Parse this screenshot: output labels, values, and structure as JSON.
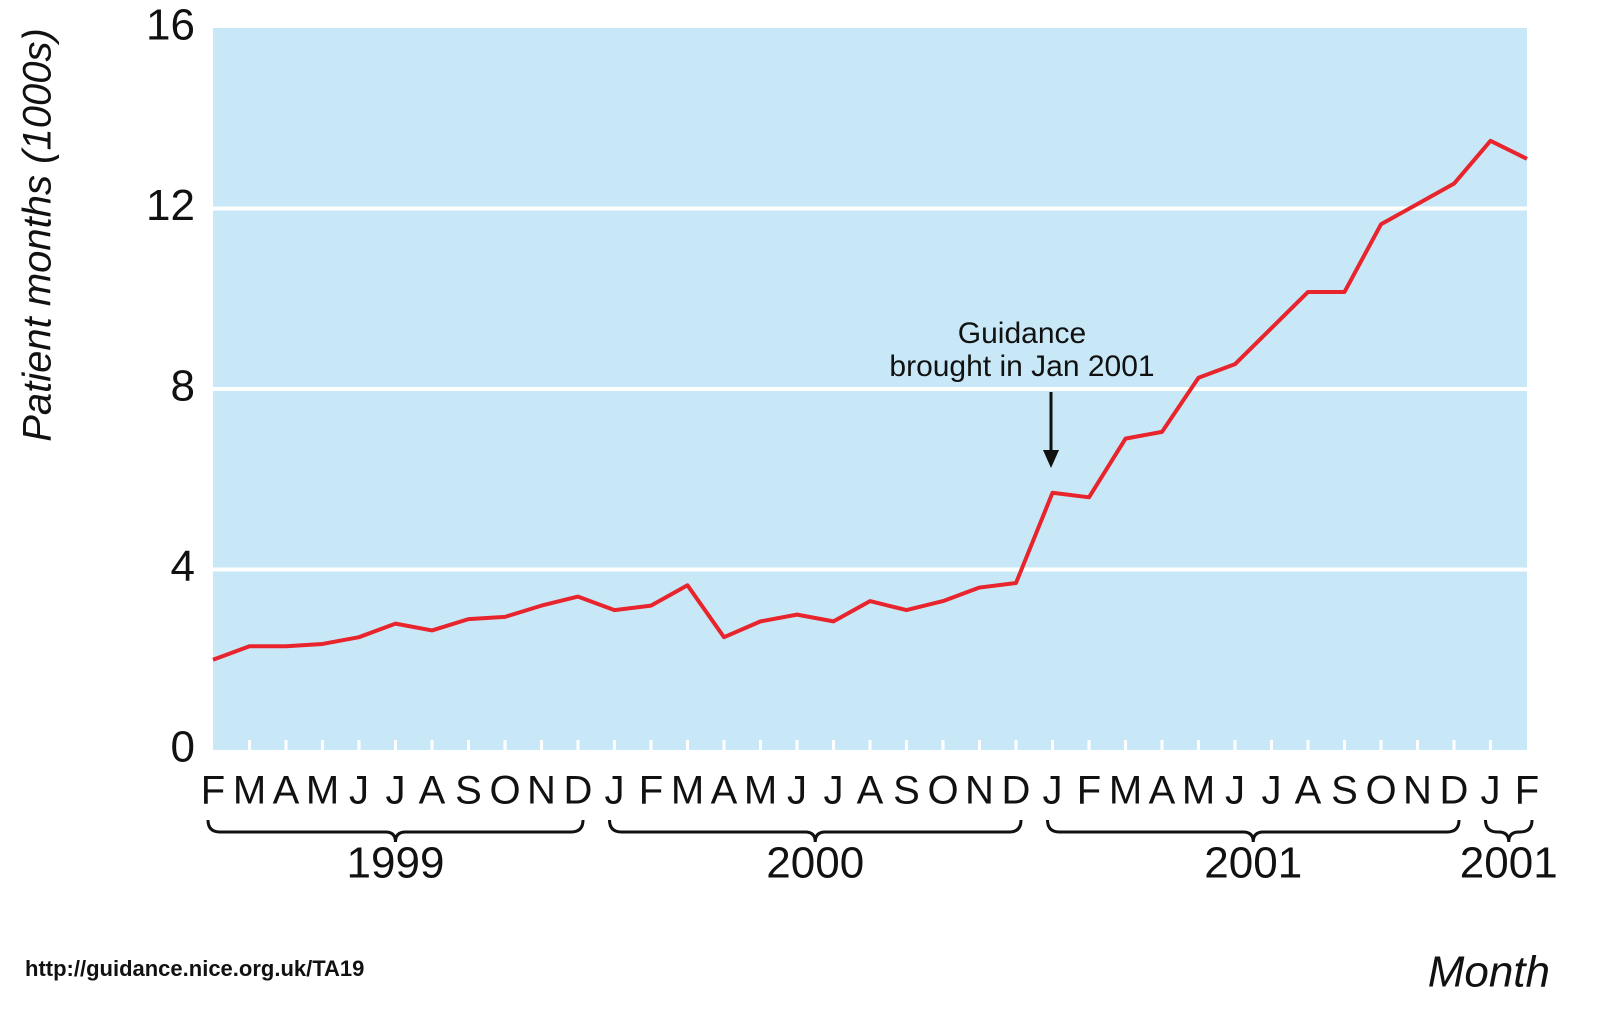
{
  "chart_data": {
    "type": "line",
    "y_label": "Patient months (1000s)",
    "x_label": "Month",
    "annotation": [
      "Guidance",
      "brought in Jan 2001"
    ],
    "source": "http://guidance.nice.org.uk/TA19",
    "categories": [
      "F",
      "M",
      "A",
      "M",
      "J",
      "J",
      "A",
      "S",
      "O",
      "N",
      "D",
      "J",
      "F",
      "M",
      "A",
      "M",
      "J",
      "J",
      "A",
      "S",
      "O",
      "N",
      "D",
      "J",
      "F",
      "M",
      "A",
      "M",
      "J",
      "J",
      "A",
      "S",
      "O",
      "N",
      "D",
      "J",
      "F"
    ],
    "year_labels": [
      "1999",
      "2000",
      "2001",
      "2001"
    ],
    "series": [
      {
        "name": "Patient months",
        "color": "#e8242c",
        "values": [
          2.0,
          2.3,
          2.3,
          2.35,
          2.5,
          2.8,
          2.65,
          2.9,
          2.95,
          3.2,
          3.4,
          3.1,
          3.2,
          3.65,
          2.5,
          2.85,
          3.0,
          2.85,
          3.3,
          3.1,
          3.3,
          3.6,
          3.7,
          5.7,
          5.6,
          6.9,
          7.05,
          8.25,
          8.55,
          9.35,
          10.15,
          10.15,
          11.65,
          12.1,
          12.55,
          13.5,
          13.1
        ]
      }
    ],
    "ylim": [
      0,
      16
    ],
    "yticks": [
      0,
      4,
      8,
      12,
      16
    ],
    "grid": true,
    "background": "#c8e8f8"
  }
}
